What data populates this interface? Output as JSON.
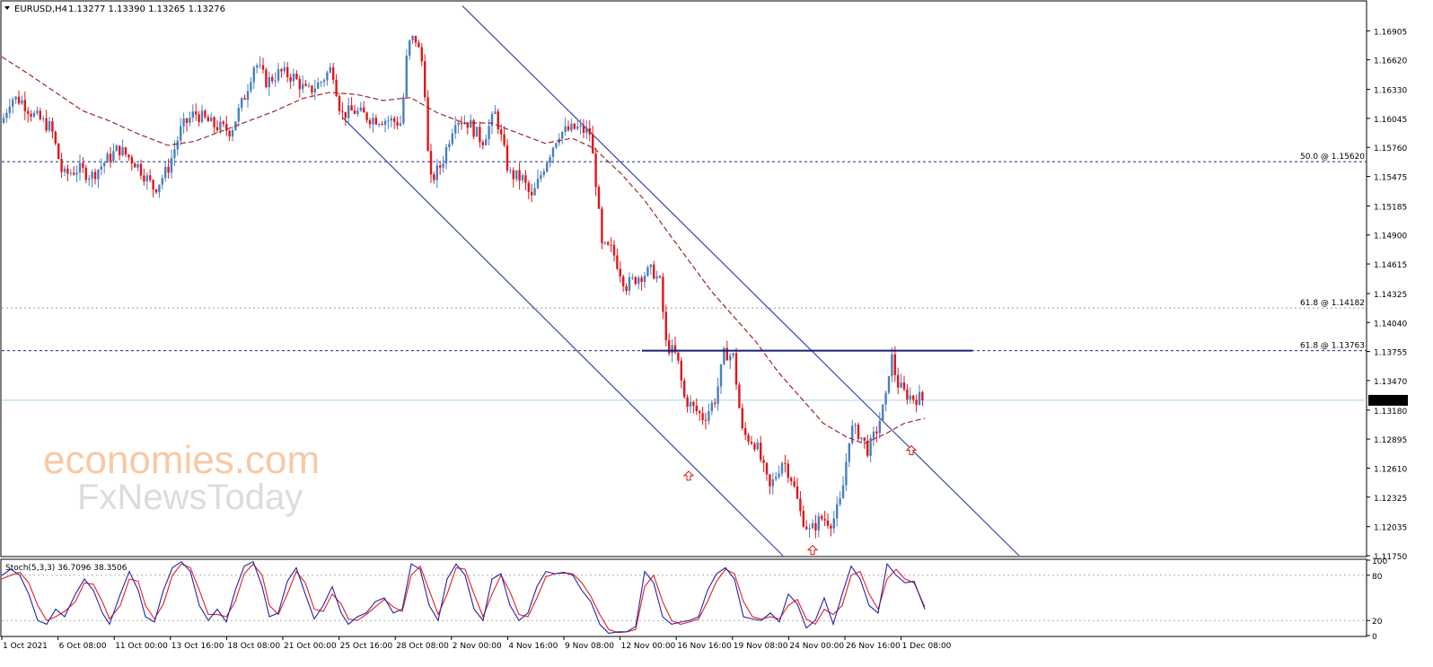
{
  "header": {
    "symbol": "EURUSD,H4",
    "ohlc": "1.13277 1.13390 1.13265 1.13276"
  },
  "watermark": {
    "line1": "economies.com",
    "line2": "FxNewsToday"
  },
  "colors": {
    "bull": "#4a7fc0",
    "bear": "#e0161b",
    "ma": "#a0282c",
    "channel": "#3a46a8",
    "stoch_main": "#2424a8",
    "stoch_signal": "#e02020",
    "bid_line": "#a8d8ec"
  },
  "chart_data": {
    "type": "candlestick",
    "timeframe": "H4",
    "ylim": [
      1.1175,
      1.1719
    ],
    "price_axis": [
      "1.16905",
      "1.16620",
      "1.16330",
      "1.16045",
      "1.15760",
      "1.15475",
      "1.15185",
      "1.14900",
      "1.14615",
      "1.14325",
      "1.14040",
      "1.13755",
      "1.13470",
      "1.13180",
      "1.12895",
      "1.12610",
      "1.12325",
      "1.12035",
      "1.11750"
    ],
    "time_axis": [
      "1 Oct 2021",
      "6 Oct 08:00",
      "11 Oct 00:00",
      "13 Oct 16:00",
      "18 Oct 08:00",
      "21 Oct 00:00",
      "25 Oct 16:00",
      "28 Oct 08:00",
      "2 Nov 00:00",
      "4 Nov 16:00",
      "9 Nov 08:00",
      "12 Nov 00:00",
      "16 Nov 16:00",
      "19 Nov 08:00",
      "24 Nov 00:00",
      "26 Nov 16:00",
      "1 Dec 08:00"
    ],
    "current_price": "1.13276",
    "levels": [
      {
        "label": "50.0 @ 1.15620",
        "price": 1.1562
      },
      {
        "label": "61.8 @ 1.14182",
        "price": 1.14182
      },
      {
        "label": "61.8 @ 1.13763",
        "price": 1.13763
      }
    ],
    "resistance": 1.13763,
    "close_path": [
      [
        0,
        1.16
      ],
      [
        10,
        1.1625
      ],
      [
        22,
        1.1622
      ],
      [
        35,
        1.1608
      ],
      [
        55,
        1.1595
      ],
      [
        68,
        1.1548
      ],
      [
        85,
        1.1555
      ],
      [
        100,
        1.1548
      ],
      [
        115,
        1.1562
      ],
      [
        130,
        1.1575
      ],
      [
        150,
        1.156
      ],
      [
        170,
        1.1535
      ],
      [
        185,
        1.1555
      ],
      [
        200,
        1.1595
      ],
      [
        215,
        1.161
      ],
      [
        235,
        1.1598
      ],
      [
        255,
        1.1592
      ],
      [
        270,
        1.1625
      ],
      [
        282,
        1.166
      ],
      [
        295,
        1.164
      ],
      [
        310,
        1.165
      ],
      [
        325,
        1.1645
      ],
      [
        340,
        1.163
      ],
      [
        355,
        1.164
      ],
      [
        368,
        1.1655
      ],
      [
        378,
        1.1608
      ],
      [
        392,
        1.1612
      ],
      [
        410,
        1.1605
      ],
      [
        430,
        1.1603
      ],
      [
        445,
        1.16
      ],
      [
        452,
        1.1675
      ],
      [
        460,
        1.1685
      ],
      [
        468,
        1.166
      ],
      [
        472,
        1.1625
      ],
      [
        476,
        1.154
      ],
      [
        490,
        1.156
      ],
      [
        505,
        1.1605
      ],
      [
        520,
        1.16
      ],
      [
        535,
        1.1582
      ],
      [
        550,
        1.161
      ],
      [
        565,
        1.155
      ],
      [
        580,
        1.1545
      ],
      [
        590,
        1.1525
      ],
      [
        605,
        1.156
      ],
      [
        620,
        1.159
      ],
      [
        640,
        1.1595
      ],
      [
        655,
        1.159
      ],
      [
        662,
        1.154
      ],
      [
        668,
        1.1478
      ],
      [
        680,
        1.1475
      ],
      [
        695,
        1.144
      ],
      [
        710,
        1.145
      ],
      [
        725,
        1.1455
      ],
      [
        735,
        1.144
      ],
      [
        738,
        1.1385
      ],
      [
        752,
        1.137
      ],
      [
        760,
        1.133
      ],
      [
        770,
        1.132
      ],
      [
        782,
        1.131
      ],
      [
        795,
        1.133
      ],
      [
        805,
        1.1375
      ],
      [
        815,
        1.137
      ],
      [
        820,
        1.133
      ],
      [
        825,
        1.1295
      ],
      [
        840,
        1.1285
      ],
      [
        855,
        1.124
      ],
      [
        870,
        1.127
      ],
      [
        880,
        1.125
      ],
      [
        890,
        1.1215
      ],
      [
        900,
        1.1198
      ],
      [
        912,
        1.1212
      ],
      [
        925,
        1.1208
      ],
      [
        935,
        1.123
      ],
      [
        945,
        1.13
      ],
      [
        955,
        1.1295
      ],
      [
        965,
        1.1278
      ],
      [
        975,
        1.13
      ],
      [
        985,
        1.133
      ],
      [
        990,
        1.1375
      ],
      [
        997,
        1.1345
      ],
      [
        1005,
        1.1335
      ],
      [
        1015,
        1.133
      ],
      [
        1028,
        1.133
      ]
    ],
    "ma_path": [
      [
        0,
        1.1665
      ],
      [
        30,
        1.1648
      ],
      [
        60,
        1.163
      ],
      [
        90,
        1.1612
      ],
      [
        120,
        1.1602
      ],
      [
        150,
        1.159
      ],
      [
        185,
        1.1578
      ],
      [
        215,
        1.1582
      ],
      [
        245,
        1.1592
      ],
      [
        275,
        1.1602
      ],
      [
        305,
        1.1612
      ],
      [
        335,
        1.1624
      ],
      [
        365,
        1.163
      ],
      [
        395,
        1.1628
      ],
      [
        425,
        1.1622
      ],
      [
        455,
        1.1625
      ],
      [
        485,
        1.161
      ],
      [
        515,
        1.16
      ],
      [
        545,
        1.16
      ],
      [
        575,
        1.159
      ],
      [
        605,
        1.158
      ],
      [
        635,
        1.1585
      ],
      [
        660,
        1.1575
      ],
      [
        690,
        1.155
      ],
      [
        715,
        1.1525
      ],
      [
        740,
        1.1495
      ],
      [
        765,
        1.1465
      ],
      [
        790,
        1.1435
      ],
      [
        815,
        1.141
      ],
      [
        840,
        1.1385
      ],
      [
        865,
        1.1355
      ],
      [
        890,
        1.133
      ],
      [
        915,
        1.1305
      ],
      [
        940,
        1.1292
      ],
      [
        960,
        1.1285
      ],
      [
        985,
        1.1295
      ],
      [
        1005,
        1.1305
      ],
      [
        1028,
        1.131
      ]
    ],
    "channel": {
      "upper": [
        [
          513,
          1.1715
        ],
        [
          1133,
          1.1175
        ]
      ],
      "lower": [
        [
          380,
          1.1605
        ],
        [
          870,
          1.1175
        ]
      ]
    },
    "arrows": [
      [
        765,
        1.1258
      ],
      [
        903,
        1.1185
      ],
      [
        1013,
        1.1283
      ]
    ],
    "stochastic": {
      "label": "Stoch(5,3,3) 36.7096 38.3506",
      "k": 36.7096,
      "d": 38.3506,
      "levels": [
        80,
        20
      ],
      "axis": [
        "100",
        "80",
        "20",
        "0"
      ],
      "k_path": [
        [
          0,
          80
        ],
        [
          10,
          88
        ],
        [
          20,
          80
        ],
        [
          30,
          55
        ],
        [
          40,
          20
        ],
        [
          50,
          15
        ],
        [
          60,
          35
        ],
        [
          70,
          25
        ],
        [
          82,
          55
        ],
        [
          92,
          75
        ],
        [
          102,
          60
        ],
        [
          112,
          30
        ],
        [
          120,
          15
        ],
        [
          132,
          55
        ],
        [
          142,
          85
        ],
        [
          152,
          60
        ],
        [
          160,
          25
        ],
        [
          170,
          18
        ],
        [
          180,
          60
        ],
        [
          190,
          90
        ],
        [
          200,
          98
        ],
        [
          210,
          85
        ],
        [
          220,
          40
        ],
        [
          230,
          20
        ],
        [
          240,
          35
        ],
        [
          250,
          18
        ],
        [
          260,
          60
        ],
        [
          270,
          92
        ],
        [
          280,
          98
        ],
        [
          290,
          65
        ],
        [
          298,
          25
        ],
        [
          308,
          30
        ],
        [
          318,
          72
        ],
        [
          328,
          90
        ],
        [
          338,
          55
        ],
        [
          348,
          22
        ],
        [
          358,
          40
        ],
        [
          368,
          65
        ],
        [
          378,
          30
        ],
        [
          386,
          15
        ],
        [
          396,
          25
        ],
        [
          406,
          30
        ],
        [
          416,
          45
        ],
        [
          426,
          50
        ],
        [
          436,
          30
        ],
        [
          446,
          35
        ],
        [
          456,
          95
        ],
        [
          466,
          88
        ],
        [
          476,
          40
        ],
        [
          486,
          20
        ],
        [
          496,
          75
        ],
        [
          506,
          95
        ],
        [
          516,
          80
        ],
        [
          526,
          35
        ],
        [
          536,
          20
        ],
        [
          546,
          75
        ],
        [
          556,
          82
        ],
        [
          566,
          40
        ],
        [
          576,
          20
        ],
        [
          586,
          30
        ],
        [
          596,
          65
        ],
        [
          606,
          85
        ],
        [
          616,
          82
        ],
        [
          626,
          84
        ],
        [
          636,
          80
        ],
        [
          646,
          60
        ],
        [
          656,
          45
        ],
        [
          666,
          15
        ],
        [
          676,
          3
        ],
        [
          686,
          5
        ],
        [
          696,
          5
        ],
        [
          706,
          12
        ],
        [
          716,
          85
        ],
        [
          726,
          70
        ],
        [
          736,
          25
        ],
        [
          746,
          15
        ],
        [
          756,
          18
        ],
        [
          766,
          20
        ],
        [
          776,
          25
        ],
        [
          786,
          60
        ],
        [
          796,
          82
        ],
        [
          806,
          90
        ],
        [
          816,
          75
        ],
        [
          826,
          25
        ],
        [
          836,
          22
        ],
        [
          846,
          20
        ],
        [
          856,
          30
        ],
        [
          866,
          18
        ],
        [
          876,
          55
        ],
        [
          886,
          42
        ],
        [
          896,
          10
        ],
        [
          906,
          20
        ],
        [
          916,
          50
        ],
        [
          926,
          15
        ],
        [
          936,
          55
        ],
        [
          946,
          92
        ],
        [
          956,
          75
        ],
        [
          966,
          40
        ],
        [
          976,
          30
        ],
        [
          986,
          95
        ],
        [
          996,
          80
        ],
        [
          1006,
          70
        ],
        [
          1016,
          72
        ],
        [
          1028,
          35
        ]
      ],
      "d_path": [
        [
          0,
          75
        ],
        [
          10,
          80
        ],
        [
          20,
          84
        ],
        [
          30,
          70
        ],
        [
          40,
          40
        ],
        [
          50,
          20
        ],
        [
          60,
          25
        ],
        [
          70,
          32
        ],
        [
          82,
          45
        ],
        [
          92,
          70
        ],
        [
          102,
          68
        ],
        [
          112,
          45
        ],
        [
          120,
          22
        ],
        [
          132,
          40
        ],
        [
          142,
          75
        ],
        [
          152,
          72
        ],
        [
          160,
          40
        ],
        [
          170,
          22
        ],
        [
          180,
          42
        ],
        [
          190,
          80
        ],
        [
          200,
          95
        ],
        [
          210,
          90
        ],
        [
          220,
          60
        ],
        [
          230,
          28
        ],
        [
          240,
          28
        ],
        [
          250,
          25
        ],
        [
          260,
          45
        ],
        [
          270,
          82
        ],
        [
          280,
          95
        ],
        [
          290,
          80
        ],
        [
          298,
          40
        ],
        [
          308,
          28
        ],
        [
          318,
          55
        ],
        [
          328,
          85
        ],
        [
          338,
          70
        ],
        [
          348,
          35
        ],
        [
          358,
          32
        ],
        [
          368,
          55
        ],
        [
          378,
          42
        ],
        [
          386,
          22
        ],
        [
          396,
          20
        ],
        [
          406,
          28
        ],
        [
          416,
          38
        ],
        [
          426,
          48
        ],
        [
          436,
          38
        ],
        [
          446,
          32
        ],
        [
          456,
          80
        ],
        [
          466,
          92
        ],
        [
          476,
          60
        ],
        [
          486,
          28
        ],
        [
          496,
          55
        ],
        [
          506,
          90
        ],
        [
          516,
          88
        ],
        [
          526,
          55
        ],
        [
          536,
          25
        ],
        [
          546,
          55
        ],
        [
          556,
          80
        ],
        [
          566,
          58
        ],
        [
          576,
          28
        ],
        [
          586,
          25
        ],
        [
          596,
          50
        ],
        [
          606,
          78
        ],
        [
          616,
          82
        ],
        [
          626,
          83
        ],
        [
          636,
          82
        ],
        [
          646,
          70
        ],
        [
          656,
          52
        ],
        [
          666,
          28
        ],
        [
          676,
          8
        ],
        [
          686,
          4
        ],
        [
          696,
          5
        ],
        [
          706,
          8
        ],
        [
          716,
          65
        ],
        [
          726,
          80
        ],
        [
          736,
          45
        ],
        [
          746,
          20
        ],
        [
          756,
          15
        ],
        [
          766,
          18
        ],
        [
          776,
          22
        ],
        [
          786,
          45
        ],
        [
          796,
          72
        ],
        [
          806,
          88
        ],
        [
          816,
          82
        ],
        [
          826,
          45
        ],
        [
          836,
          25
        ],
        [
          846,
          22
        ],
        [
          856,
          25
        ],
        [
          866,
          22
        ],
        [
          876,
          40
        ],
        [
          886,
          48
        ],
        [
          896,
          22
        ],
        [
          906,
          15
        ],
        [
          916,
          35
        ],
        [
          926,
          28
        ],
        [
          936,
          40
        ],
        [
          946,
          80
        ],
        [
          956,
          85
        ],
        [
          966,
          55
        ],
        [
          976,
          35
        ],
        [
          986,
          75
        ],
        [
          996,
          88
        ],
        [
          1006,
          75
        ],
        [
          1016,
          70
        ],
        [
          1028,
          38
        ]
      ]
    }
  }
}
